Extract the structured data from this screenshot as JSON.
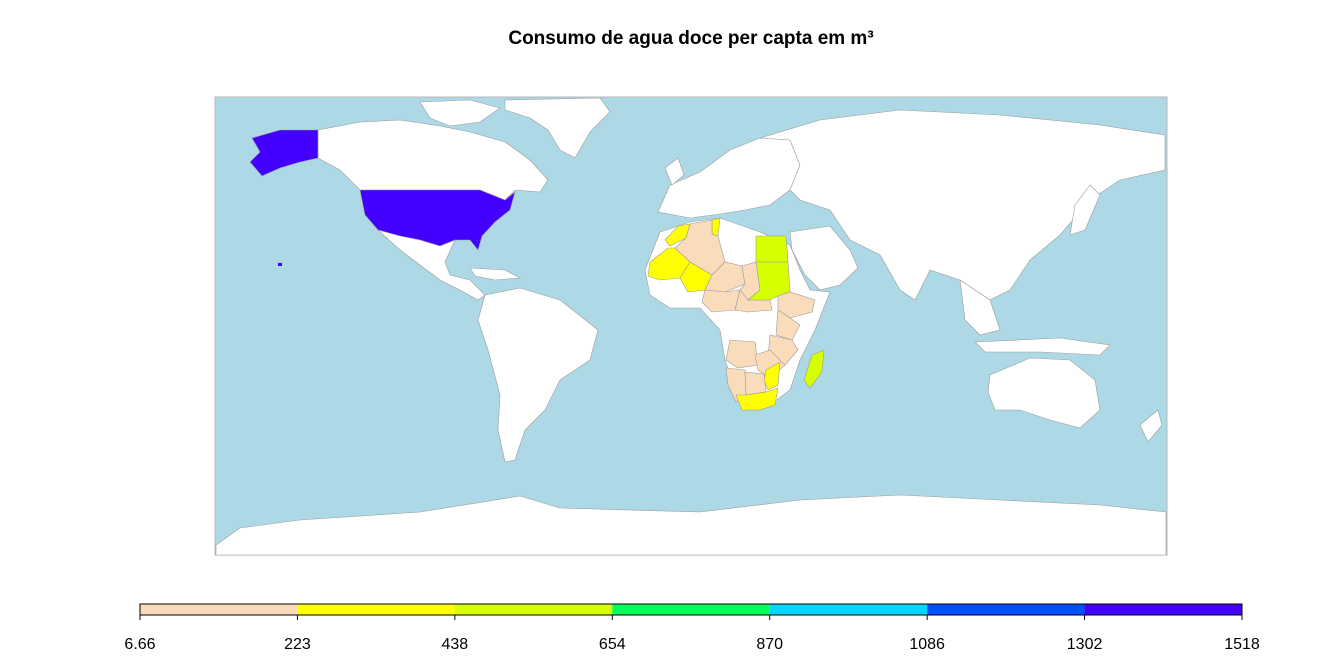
{
  "title": "Consumo de agua doce per capta em m³",
  "map": {
    "ocean_color": "#add8e6",
    "land_color": "#ffffff",
    "border_color": "#9c9c9c",
    "highlighted": [
      {
        "region": "Alaska (USA)",
        "bin": 7
      },
      {
        "region": "United States",
        "bin": 7
      },
      {
        "region": "Hawaii (USA)",
        "bin": 7
      },
      {
        "region": "Egypt",
        "bin": 3
      },
      {
        "region": "Sudan",
        "bin": 3
      },
      {
        "region": "Madagascar",
        "bin": 3
      },
      {
        "region": "Mauritania",
        "bin": 2
      },
      {
        "region": "Mali",
        "bin": 2
      },
      {
        "region": "Morocco",
        "bin": 2
      },
      {
        "region": "Tunisia",
        "bin": 2
      },
      {
        "region": "South Africa",
        "bin": 2
      },
      {
        "region": "Mozambique (south)",
        "bin": 2
      },
      {
        "region": "Algeria",
        "bin": 1
      },
      {
        "region": "Niger",
        "bin": 1
      },
      {
        "region": "Chad",
        "bin": 1
      },
      {
        "region": "Nigeria",
        "bin": 1
      },
      {
        "region": "Ethiopia",
        "bin": 1
      },
      {
        "region": "Kenya",
        "bin": 1
      },
      {
        "region": "Tanzania",
        "bin": 1
      },
      {
        "region": "Zambia",
        "bin": 1
      },
      {
        "region": "Namibia",
        "bin": 1
      },
      {
        "region": "Botswana",
        "bin": 1
      },
      {
        "region": "Angola",
        "bin": 1
      },
      {
        "region": "Central African Republic",
        "bin": 1
      }
    ]
  },
  "legend": {
    "breaks": [
      "6.66",
      "223",
      "438",
      "654",
      "870",
      "1086",
      "1302",
      "1518"
    ],
    "colors": [
      "#fbdcba",
      "#ffff00",
      "#d6ff00",
      "#00ff5a",
      "#00d6ff",
      "#0050ff",
      "#4400ff"
    ]
  }
}
